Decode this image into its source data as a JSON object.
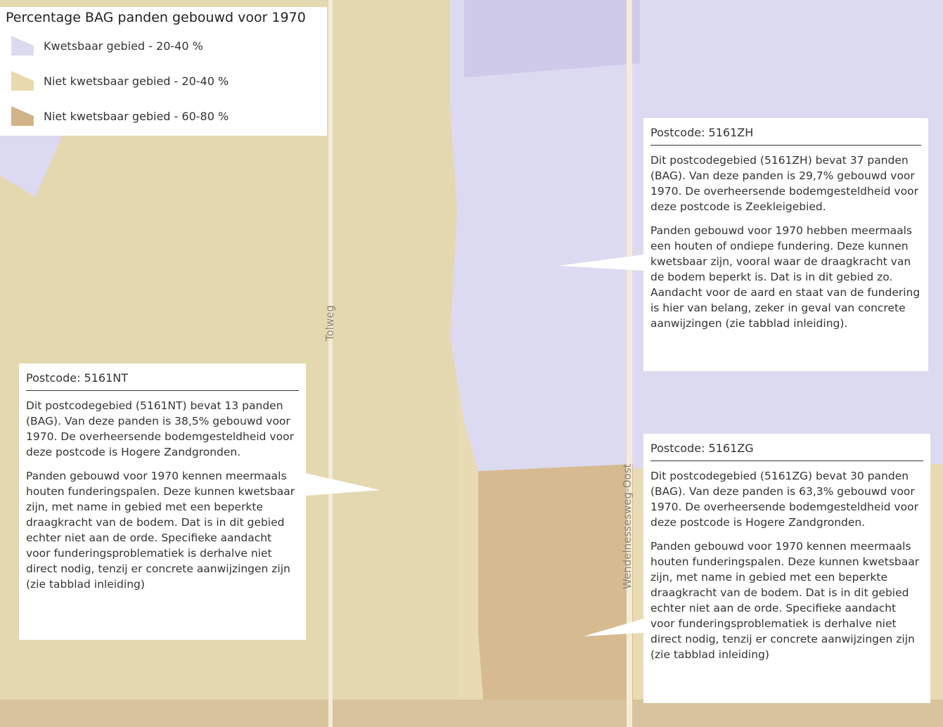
{
  "legend": {
    "title": "Percentage BAG panden gebouwd voor 1970",
    "items": [
      {
        "label": "Kwetsbaar gebied - 20-40 %",
        "color": "#dcdaf0"
      },
      {
        "label": "Niet kwetsbaar gebied - 20-40 %",
        "color": "#e8d9ae"
      },
      {
        "label": "Niet kwetsbaar gebied - 60-80 %",
        "color": "#d2b48a"
      }
    ]
  },
  "roads": [
    "Tolweg",
    "Wendelnessesweg-Oost"
  ],
  "popups": [
    {
      "title": "Postcode: 5161ZH",
      "paragraphs": [
        "Dit postcodegebied (5161ZH) bevat 37 panden (BAG). Van deze panden is 29,7% gebouwd voor 1970. De overheersende bodemgesteldheid voor deze postcode is Zeekleigebied.",
        "Panden gebouwd voor 1970 hebben meermaals een houten of ondiepe fundering. Deze kunnen kwetsbaar zijn, vooral waar de draagkracht van de bodem beperkt is. Dat is in dit gebied zo. Aandacht voor de aard en staat van de fundering is hier van belang, zeker in geval van concrete aanwijzingen (zie tabblad inleiding)."
      ]
    },
    {
      "title": "Postcode: 5161NT",
      "paragraphs": [
        "Dit postcodegebied (5161NT) bevat 13 panden (BAG). Van deze panden is 38,5% gebouwd voor 1970. De overheersende bodemgesteldheid voor deze postcode is Hogere Zandgronden.",
        "Panden gebouwd voor 1970 kennen meermaals houten funderingspalen. Deze kunnen kwetsbaar zijn, met name in gebied met een beperkte draagkracht van de bodem. Dat is in dit gebied echter niet aan de orde. Specifieke aandacht voor funderingsproblematiek is derhalve niet direct nodig, tenzij er concrete aanwijzingen zijn (zie tabblad inleiding)"
      ]
    },
    {
      "title": "Postcode: 5161ZG",
      "paragraphs": [
        "Dit postcodegebied (5161ZG) bevat 30 panden (BAG). Van deze panden is 63,3% gebouwd voor 1970. De overheersende bodemgesteldheid voor deze postcode is Hogere Zandgronden.",
        "Panden gebouwd voor 1970 kennen meermaals houten funderingspalen. Deze kunnen kwetsbaar zijn, met name in gebied met een beperkte draagkracht van de bodem. Dat is in dit gebied echter niet aan de orde. Specifieke aandacht voor funderingsproblematiek is derhalve niet direct nodig, tenzij er concrete aanwijzingen zijn (zie tabblad inleiding)"
      ]
    }
  ]
}
